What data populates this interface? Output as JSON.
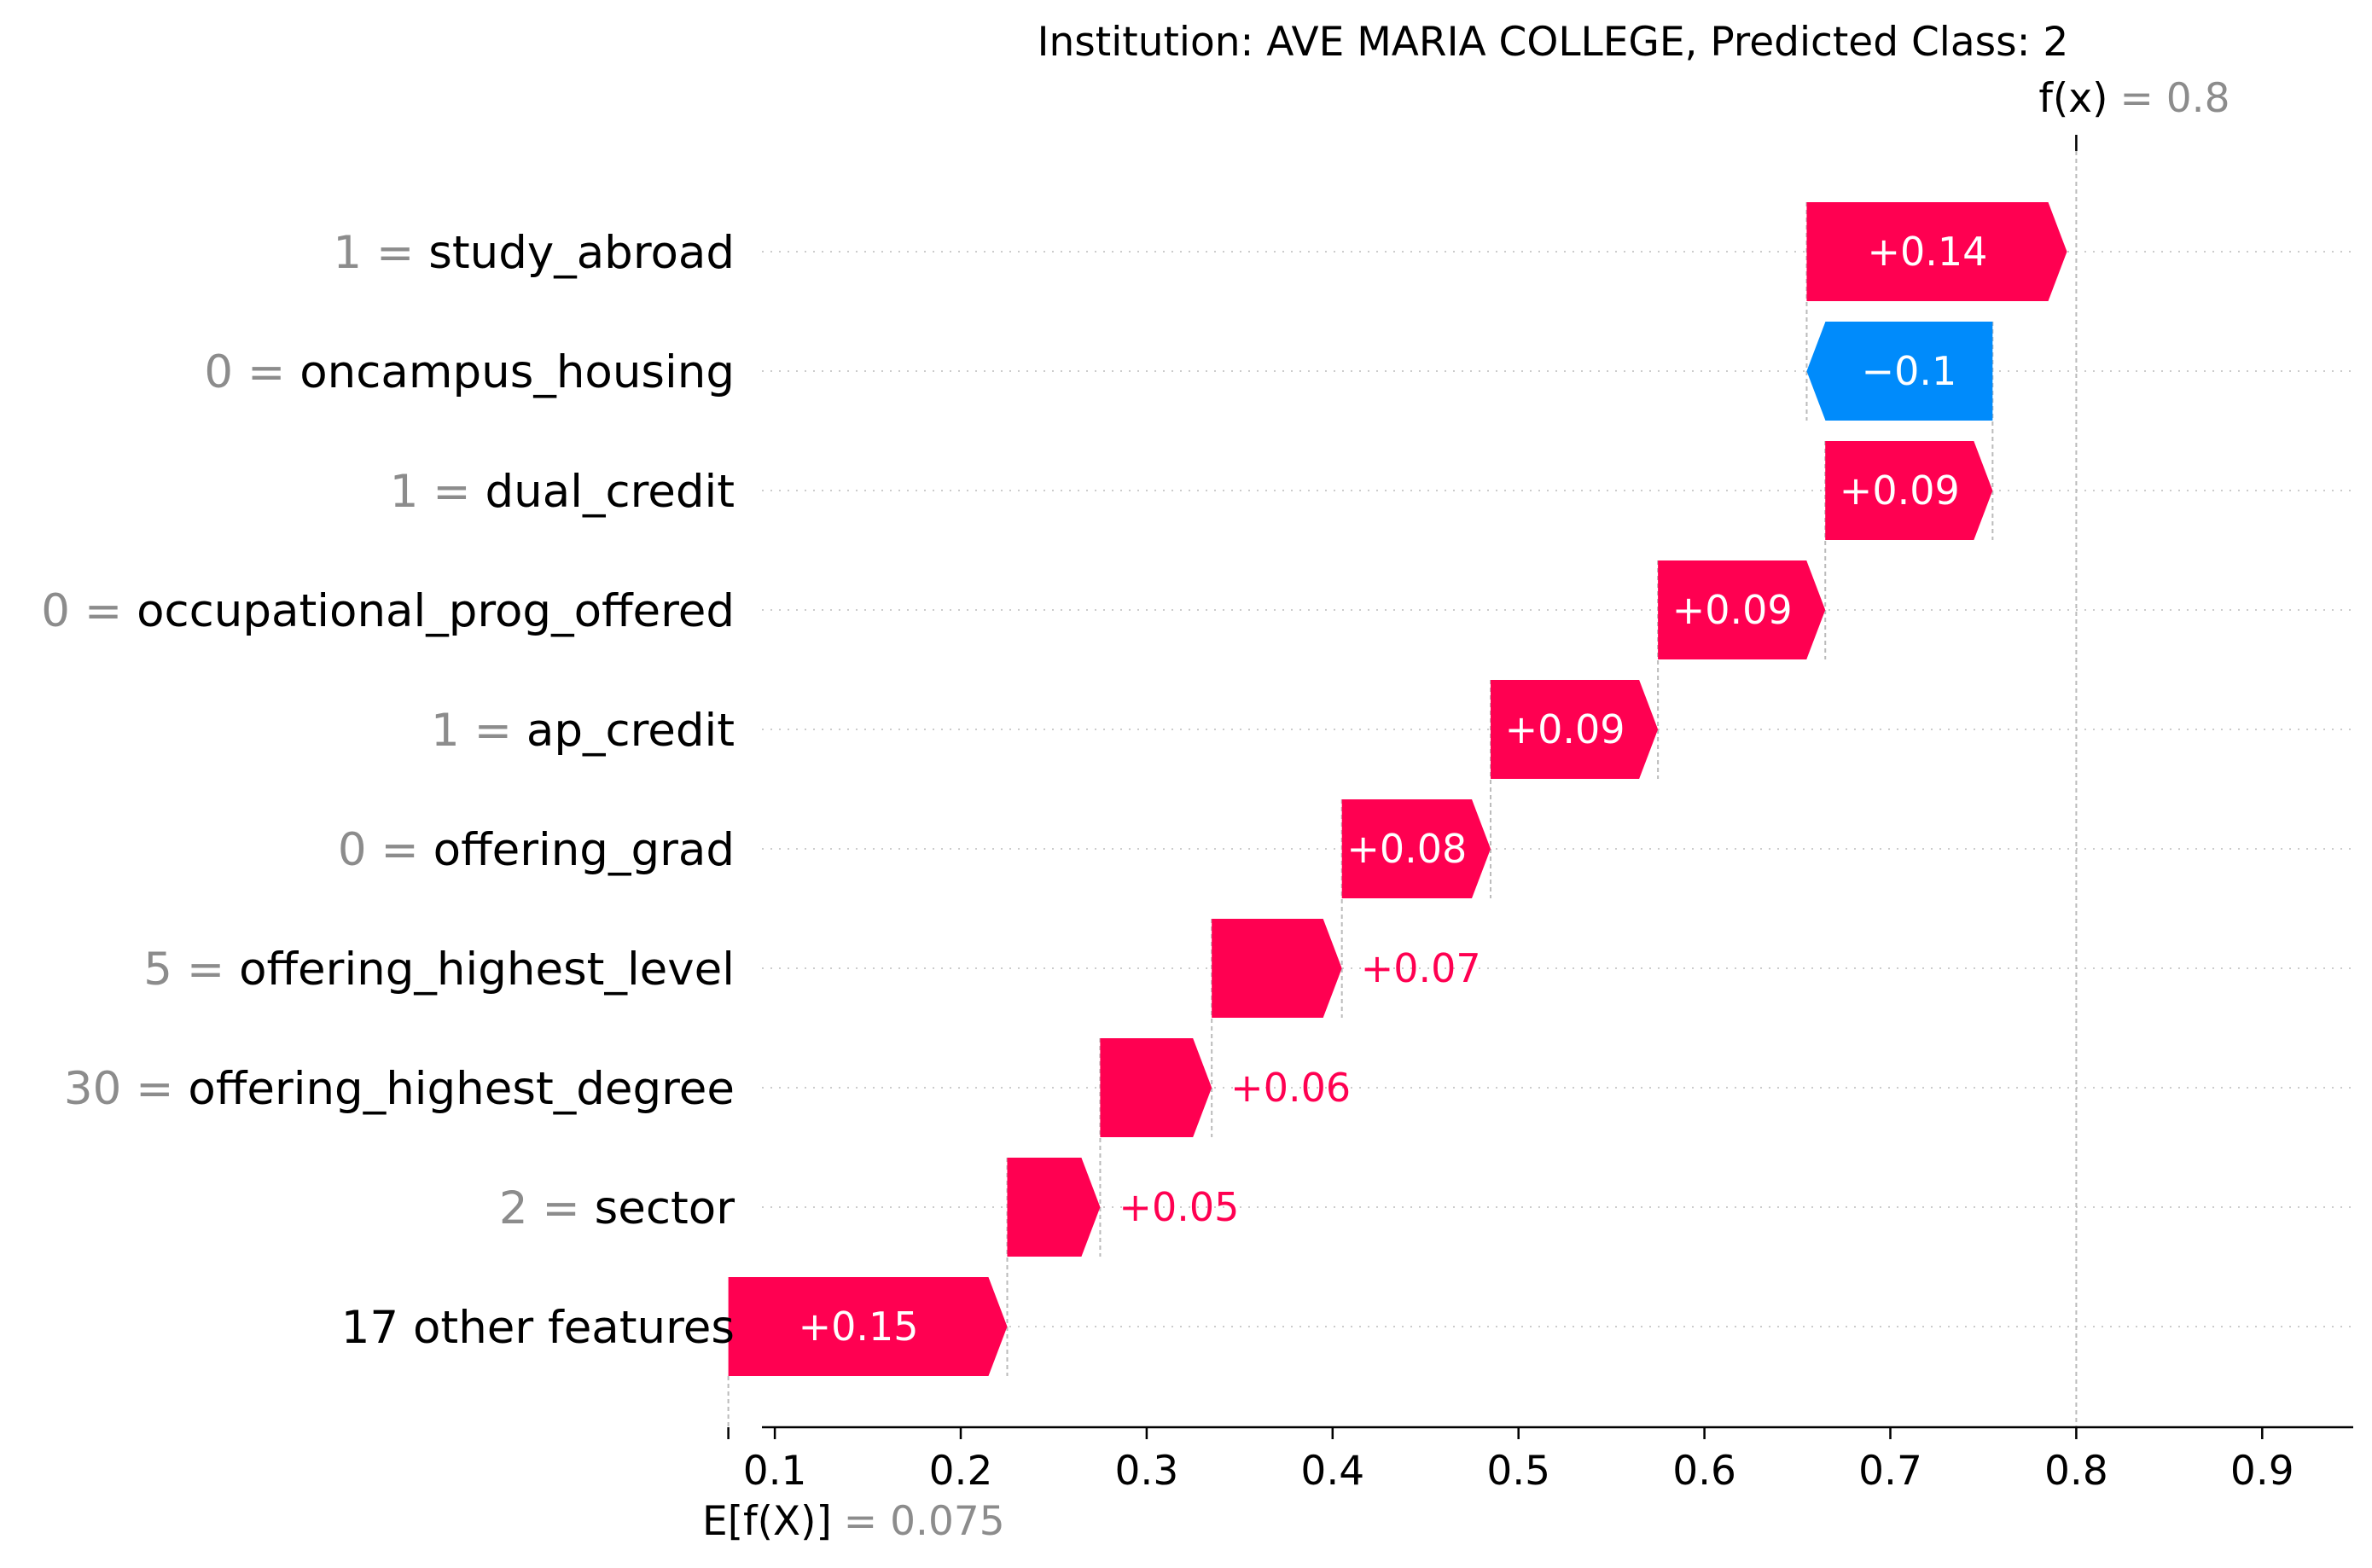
{
  "chart_data": {
    "type": "bar",
    "subtype": "waterfall",
    "title": "Institution: AVE MARIA COLLEGE, Predicted Class: 2",
    "features": [
      {
        "value": "1",
        "name": "study_abroad",
        "contribution": 0.14,
        "label": "+0.14"
      },
      {
        "value": "0",
        "name": "oncampus_housing",
        "contribution": -0.1,
        "label": "−0.1"
      },
      {
        "value": "1",
        "name": "dual_credit",
        "contribution": 0.09,
        "label": "+0.09"
      },
      {
        "value": "0",
        "name": "occupational_prog_offered",
        "contribution": 0.09,
        "label": "+0.09"
      },
      {
        "value": "1",
        "name": "ap_credit",
        "contribution": 0.09,
        "label": "+0.09"
      },
      {
        "value": "0",
        "name": "offering_grad",
        "contribution": 0.08,
        "label": "+0.08"
      },
      {
        "value": "5",
        "name": "offering_highest_level",
        "contribution": 0.07,
        "label": "+0.07"
      },
      {
        "value": "30",
        "name": "offering_highest_degree",
        "contribution": 0.06,
        "label": "+0.06"
      },
      {
        "value": "2",
        "name": "sector",
        "contribution": 0.05,
        "label": "+0.05"
      },
      {
        "value": "",
        "name": "17 other features",
        "contribution": 0.15,
        "label": "+0.15"
      }
    ],
    "base_value": 0.075,
    "prediction": 0.8,
    "fx_label": "f(x)",
    "fx_value_text": "= 0.8",
    "efx_label": "E[f(X)]",
    "efx_value_text": "= 0.075",
    "x_ticks": [
      "0.1",
      "0.2",
      "0.3",
      "0.4",
      "0.5",
      "0.6",
      "0.7",
      "0.8",
      "0.9"
    ],
    "xlim": [
      0.075,
      0.92
    ],
    "grid": "dotted horizontal row guides",
    "colors": {
      "positive": "#ff0051",
      "negative": "#008bfb",
      "neutral_text": "#8c8c8c",
      "bar_text": "#ffffff"
    }
  }
}
